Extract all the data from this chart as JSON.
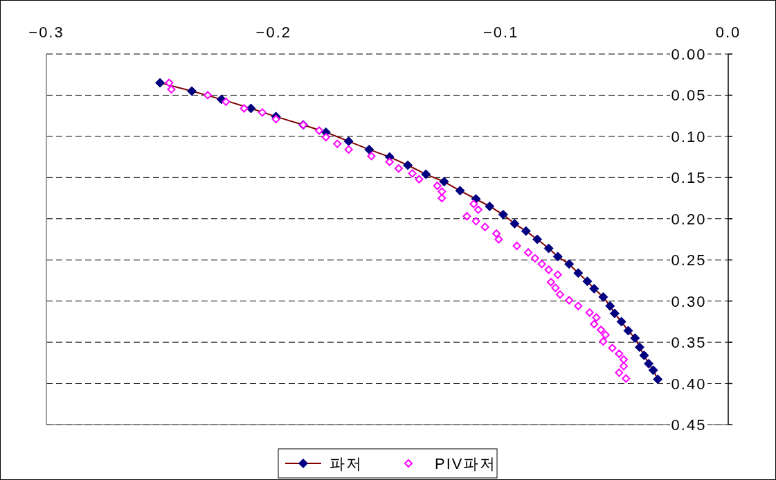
{
  "chart_data": {
    "type": "scatter",
    "xlim": [
      -0.3,
      0
    ],
    "xticks": [
      -0.3,
      -0.2,
      -0.1,
      {
        "value": 0,
        "label": "0.0"
      }
    ],
    "ylim": [
      0.45,
      0
    ],
    "yticks": [
      {
        "value": 0,
        "label": "0.00"
      },
      {
        "value": 0.05,
        "label": "0.05"
      },
      {
        "value": 0.1,
        "label": "0.10"
      },
      {
        "value": 0.15,
        "label": "0.15"
      },
      {
        "value": 0.2,
        "label": "0.20"
      },
      {
        "value": 0.25,
        "label": "0.25"
      },
      {
        "value": 0.3,
        "label": "0.30"
      },
      {
        "value": 0.35,
        "label": "0.35"
      },
      {
        "value": 0.4,
        "label": "0.40"
      },
      {
        "value": 0.45,
        "label": "0.45"
      }
    ],
    "grid": "y",
    "legend": "bottom",
    "marker": "diamond",
    "series": [
      {
        "name": "파저",
        "type": "line",
        "color": "#000080",
        "x": [
          -0.25,
          -0.236,
          -0.223,
          -0.21,
          -0.199,
          -0.187,
          -0.177,
          -0.167,
          -0.158,
          -0.149,
          -0.141,
          -0.133,
          -0.125,
          -0.118,
          -0.111,
          -0.105,
          -0.099,
          -0.094,
          -0.089,
          -0.084,
          -0.079,
          -0.075,
          -0.07,
          -0.066,
          -0.062,
          -0.059,
          -0.055,
          -0.052,
          -0.05,
          -0.047,
          -0.044,
          -0.041,
          -0.039,
          -0.037,
          -0.035,
          -0.033,
          -0.031
        ],
        "values": [
          0.035,
          0.045,
          0.055,
          0.066,
          0.076,
          0.086,
          0.095,
          0.106,
          0.116,
          0.125,
          0.135,
          0.146,
          0.155,
          0.166,
          0.176,
          0.185,
          0.195,
          0.206,
          0.215,
          0.225,
          0.236,
          0.246,
          0.255,
          0.266,
          0.276,
          0.285,
          0.295,
          0.306,
          0.315,
          0.325,
          0.336,
          0.345,
          0.356,
          0.366,
          0.376,
          0.384,
          0.395
        ]
      },
      {
        "name": "PIV파저",
        "type": "scatter",
        "color": "#ff00ff",
        "x": [
          -0.246,
          -0.245,
          -0.229,
          -0.221,
          -0.213,
          -0.205,
          -0.199,
          -0.187,
          -0.18,
          -0.177,
          -0.172,
          -0.167,
          -0.157,
          -0.149,
          -0.145,
          -0.139,
          -0.136,
          -0.128,
          -0.126,
          -0.126,
          -0.112,
          -0.11,
          -0.115,
          -0.111,
          -0.107,
          -0.102,
          -0.101,
          -0.093,
          -0.088,
          -0.085,
          -0.082,
          -0.079,
          -0.075,
          -0.078,
          -0.076,
          -0.074,
          -0.07,
          -0.066,
          -0.061,
          -0.058,
          -0.059,
          -0.056,
          -0.054,
          -0.055,
          -0.051,
          -0.048,
          -0.046,
          -0.046,
          -0.048,
          -0.045
        ],
        "values": [
          0.035,
          0.043,
          0.05,
          0.058,
          0.066,
          0.071,
          0.079,
          0.086,
          0.093,
          0.101,
          0.109,
          0.116,
          0.124,
          0.131,
          0.139,
          0.145,
          0.152,
          0.16,
          0.167,
          0.175,
          0.182,
          0.189,
          0.197,
          0.203,
          0.21,
          0.218,
          0.225,
          0.233,
          0.241,
          0.248,
          0.255,
          0.262,
          0.268,
          0.277,
          0.284,
          0.292,
          0.299,
          0.306,
          0.314,
          0.32,
          0.328,
          0.335,
          0.341,
          0.349,
          0.357,
          0.364,
          0.371,
          0.379,
          0.387,
          0.394
        ]
      }
    ]
  }
}
